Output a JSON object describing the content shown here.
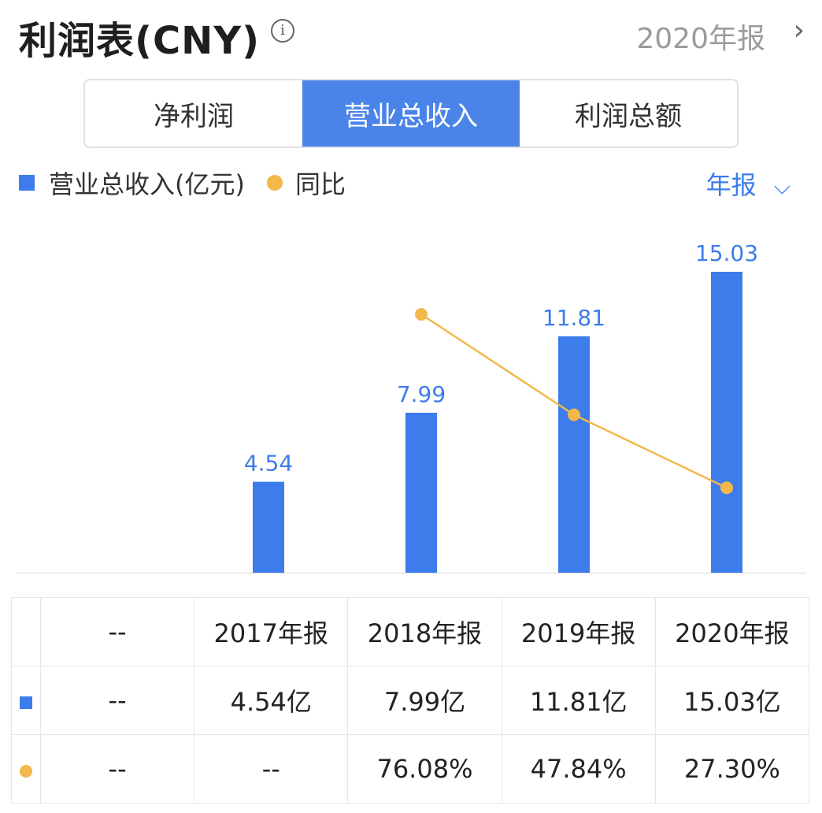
{
  "header": {
    "title": "利润表(CNY)",
    "period": "2020年报"
  },
  "tabs": [
    {
      "label": "净利润",
      "active": false
    },
    {
      "label": "营业总收入",
      "active": true
    },
    {
      "label": "利润总额",
      "active": false
    }
  ],
  "legend": {
    "bar_label": "营业总收入(亿元)",
    "line_label": "同比"
  },
  "frequency_label": "年报",
  "colors": {
    "bar": "#3d7cea",
    "line": "#f2b84a",
    "positive_pct": "#e04a4a"
  },
  "chart_data": {
    "type": "bar",
    "categories": [
      "--",
      "2017年报",
      "2018年报",
      "2019年报",
      "2020年报"
    ],
    "series": [
      {
        "name": "营业总收入(亿元)",
        "type": "bar",
        "values": [
          null,
          4.54,
          7.99,
          11.81,
          15.03
        ],
        "labels": [
          "",
          "4.54",
          "7.99",
          "11.81",
          "15.03"
        ]
      },
      {
        "name": "同比",
        "type": "line",
        "values": [
          null,
          null,
          76.08,
          47.84,
          27.3
        ]
      }
    ]
  },
  "table": {
    "header": [
      "--",
      "2017年报",
      "2018年报",
      "2019年报",
      "2020年报"
    ],
    "rows": [
      {
        "marker": "square",
        "cells": [
          "--",
          "4.54亿",
          "7.99亿",
          "11.81亿",
          "15.03亿"
        ]
      },
      {
        "marker": "dot",
        "cells": [
          "--",
          "--",
          "76.08%",
          "47.84%",
          "27.30%"
        ]
      }
    ]
  }
}
